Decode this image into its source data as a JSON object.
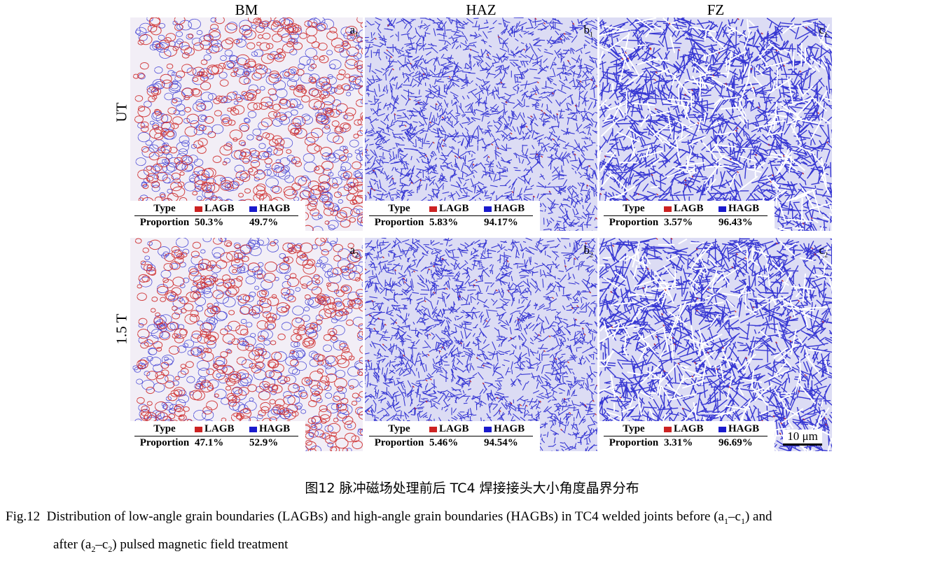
{
  "columns": [
    "BM",
    "HAZ",
    "FZ"
  ],
  "rows": [
    "UT",
    "1.5 T"
  ],
  "legend_header": {
    "type": "Type",
    "lagb": "LAGB",
    "hagb": "HAGB",
    "proportion": "Proportion"
  },
  "colors": {
    "lagb": "#cc2222",
    "hagb": "#1a1acc"
  },
  "panels": [
    {
      "id": "a",
      "sub": "1",
      "lagb": "50.3%",
      "hagb": "49.7%"
    },
    {
      "id": "b",
      "sub": "1",
      "lagb": "5.83%",
      "hagb": "94.17%"
    },
    {
      "id": "c",
      "sub": "1",
      "lagb": "3.57%",
      "hagb": "96.43%"
    },
    {
      "id": "a",
      "sub": "2",
      "lagb": "47.1%",
      "hagb": "52.9%"
    },
    {
      "id": "b",
      "sub": "2",
      "lagb": "5.46%",
      "hagb": "94.54%"
    },
    {
      "id": "c",
      "sub": "2",
      "lagb": "3.31%",
      "hagb": "96.69%"
    }
  ],
  "scale_bar": "10 μm",
  "caption_cn": "图12  脉冲磁场处理前后 TC4 焊接接头大小角度晶界分布",
  "caption_en": {
    "label": "Fig.12",
    "line1_a": "Distribution of low-angle grain boundaries (LAGBs) and high-angle grain boundaries (HAGBs) in TC4 welded joints before (a",
    "sub1": "1",
    "dash1": "–c",
    "sub2": "1",
    "line1_b": ") and",
    "line2_a": "after (a",
    "sub3": "2",
    "dash2": "–c",
    "sub4": "2",
    "line2_b": ") pulsed magnetic field treatment"
  }
}
